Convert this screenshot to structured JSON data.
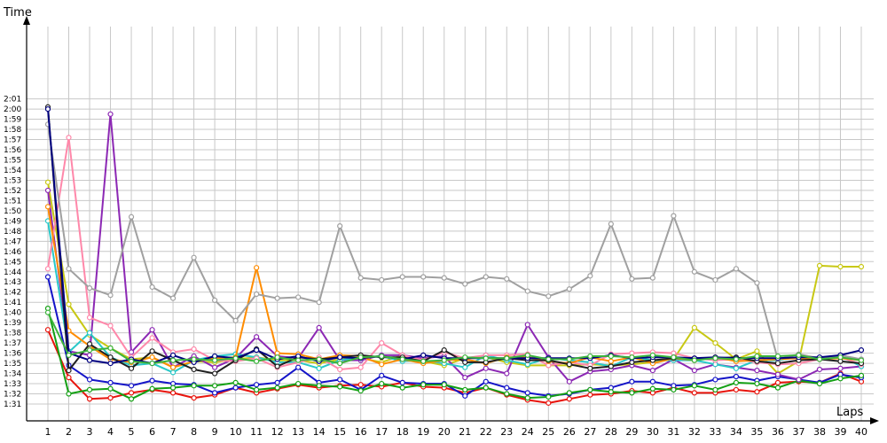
{
  "chart_data": {
    "type": "line",
    "title": "",
    "xlabel": "Laps",
    "ylabel": "Time",
    "x": [
      1,
      2,
      3,
      4,
      5,
      6,
      7,
      8,
      9,
      10,
      11,
      12,
      13,
      14,
      15,
      16,
      17,
      18,
      19,
      20,
      21,
      22,
      23,
      24,
      25,
      26,
      27,
      28,
      29,
      30,
      31,
      32,
      33,
      34,
      35,
      36,
      37,
      38,
      39,
      40
    ],
    "x_tick_labels": [
      "1",
      "2",
      "3",
      "4",
      "5",
      "6",
      "7",
      "8",
      "9",
      "10",
      "11",
      "12",
      "13",
      "14",
      "15",
      "16",
      "17",
      "18",
      "19",
      "20",
      "21",
      "22",
      "23",
      "24",
      "25",
      "26",
      "27",
      "28",
      "29",
      "30",
      "31",
      "32",
      "33",
      "34",
      "35",
      "36",
      "37",
      "38",
      "39",
      "40"
    ],
    "y_tick_labels": [
      "1:31",
      "1:32",
      "1:33",
      "1:34",
      "1:35",
      "1:36",
      "1:37",
      "1:38",
      "1:39",
      "1:40",
      "1:41",
      "1:42",
      "1:43",
      "1:44",
      "1:45",
      "1:46",
      "1:47",
      "1:48",
      "1:49",
      "1:50",
      "1:51",
      "1:52",
      "1:53",
      "1:54",
      "1:55",
      "1:56",
      "1:57",
      "1:58",
      "1:59",
      "2:00",
      "2:01"
    ],
    "y_unit": "seconds",
    "ylim": [
      90,
      122
    ],
    "grid": true,
    "series": [
      {
        "color": "#e8140c",
        "values": [
          98.3,
          93.6,
          91.5,
          91.6,
          92.1,
          92.4,
          92.1,
          91.6,
          91.9,
          92.6,
          92.1,
          92.5,
          92.9,
          92.6,
          92.8,
          92.9,
          92.7,
          93.1,
          92.7,
          92.6,
          92.1,
          92.6,
          91.9,
          91.4,
          91.1,
          91.5,
          91.9,
          92.0,
          92.3,
          92.1,
          92.6,
          92.1,
          92.1,
          92.4,
          92.2,
          93.1,
          93.2,
          93.1,
          94.0,
          93.2
        ]
      },
      {
        "color": "#1414c8",
        "values": [
          103.5,
          94.8,
          93.4,
          93.1,
          92.8,
          93.3,
          93.0,
          92.9,
          92.1,
          92.6,
          92.9,
          93.1,
          94.6,
          93.1,
          93.4,
          92.4,
          93.8,
          93.1,
          93.0,
          93.0,
          91.8,
          93.2,
          92.6,
          92.1,
          91.8,
          92.0,
          92.4,
          92.6,
          93.2,
          93.2,
          92.8,
          92.9,
          93.4,
          93.7,
          93.3,
          93.7,
          93.4,
          93.1,
          93.9,
          93.6
        ]
      },
      {
        "color": "#14a014",
        "values": [
          100.4,
          92.0,
          92.4,
          92.5,
          91.5,
          92.5,
          92.6,
          92.8,
          92.8,
          93.1,
          92.4,
          92.6,
          93.0,
          92.8,
          92.7,
          92.3,
          93.0,
          92.6,
          92.9,
          92.9,
          92.4,
          92.6,
          92.0,
          91.6,
          91.7,
          92.1,
          92.4,
          92.2,
          92.1,
          92.5,
          92.4,
          92.8,
          92.4,
          93.1,
          93.0,
          92.6,
          93.3,
          93.0,
          93.5,
          93.8
        ]
      },
      {
        "color": "#c8c814",
        "values": [
          112.8,
          100.8,
          97.8,
          96.5,
          95.4,
          95.6,
          94.6,
          95.2,
          95.1,
          95.4,
          95.6,
          95.3,
          95.3,
          95.0,
          95.4,
          95.5,
          95.1,
          95.8,
          95.2,
          94.8,
          95.5,
          95.6,
          95.1,
          94.8,
          94.8,
          94.8,
          94.9,
          94.8,
          94.9,
          95.1,
          95.4,
          98.5,
          97.0,
          95.4,
          96.2,
          94.0,
          95.2,
          104.6,
          104.5,
          104.5
        ]
      },
      {
        "color": "#8c28b4",
        "values": [
          112.0,
          96.2,
          95.8,
          119.5,
          96.1,
          98.3,
          94.6,
          95.7,
          94.6,
          95.5,
          97.6,
          95.7,
          95.5,
          98.5,
          95.3,
          95.3,
          95.8,
          95.8,
          95.5,
          95.7,
          93.6,
          94.5,
          94.0,
          98.8,
          95.6,
          93.2,
          94.2,
          94.4,
          94.8,
          94.3,
          95.4,
          94.3,
          94.9,
          94.6,
          94.3,
          93.9,
          93.4,
          94.4,
          94.5,
          94.7
        ]
      },
      {
        "color": "#28c8c8",
        "values": [
          109.0,
          96.1,
          98.0,
          95.6,
          94.8,
          95.0,
          94.1,
          95.3,
          95.7,
          95.9,
          95.6,
          95.1,
          95.1,
          94.5,
          95.3,
          95.6,
          95.7,
          95.2,
          95.3,
          95.0,
          94.6,
          95.8,
          95.3,
          94.9,
          95.5,
          95.3,
          95.1,
          94.7,
          95.6,
          95.3,
          95.3,
          95.3,
          94.9,
          94.5,
          95.3,
          95.3,
          95.6,
          95.5,
          95.7,
          94.7
        ]
      },
      {
        "color": "#ff88aa",
        "values": [
          104.3,
          117.2,
          99.5,
          98.7,
          95.6,
          97.5,
          96.1,
          96.4,
          95.3,
          95.2,
          95.5,
          94.6,
          95.1,
          95.6,
          94.4,
          94.6,
          97.0,
          95.8,
          95.3,
          96.1,
          95.5,
          95.8,
          95.8,
          95.9,
          94.8,
          95.1,
          94.8,
          95.9,
          96.0,
          96.1,
          96.0,
          95.5,
          95.3,
          95.4,
          95.1,
          94.9,
          95.0,
          95.4,
          95.6,
          94.9
        ]
      },
      {
        "color": "#ff8c00",
        "values": [
          110.4,
          98.2,
          96.7,
          95.4,
          95.1,
          95.6,
          94.6,
          95.2,
          95.5,
          95.6,
          104.4,
          96.0,
          95.9,
          95.4,
          95.8,
          95.7,
          94.9,
          95.4,
          95.0,
          95.3,
          95.4,
          95.0,
          95.6,
          95.6,
          95.2,
          95.0,
          95.6,
          95.2,
          95.6,
          95.0,
          95.5,
          95.3,
          95.6,
          95.2,
          95.3,
          95.4,
          95.5,
          95.4,
          95.5,
          95.3
        ]
      },
      {
        "color": "#202020",
        "values": [
          120.2,
          94.3,
          96.9,
          95.6,
          94.5,
          96.2,
          95.3,
          94.4,
          94.0,
          95.3,
          96.4,
          94.7,
          95.6,
          95.4,
          95.6,
          95.8,
          95.6,
          95.6,
          95.2,
          96.3,
          95.1,
          95.1,
          95.5,
          95.3,
          95.3,
          94.9,
          94.5,
          94.7,
          95.1,
          95.3,
          95.5,
          95.5,
          95.5,
          95.6,
          95.2,
          95.0,
          95.3,
          95.4,
          95.2,
          95.0
        ]
      },
      {
        "color": "#a0a0a0",
        "values": [
          118.5,
          104.3,
          102.4,
          101.7,
          109.4,
          102.5,
          101.4,
          105.4,
          101.2,
          99.2,
          101.8,
          101.4,
          101.5,
          101.0,
          108.5,
          103.4,
          103.2,
          103.5,
          103.5,
          103.4,
          102.8,
          103.5,
          103.3,
          102.1,
          101.6,
          102.3,
          103.6,
          108.7,
          103.3,
          103.4,
          109.5,
          104.0,
          103.2,
          104.3,
          102.9,
          95.4,
          95.9,
          95.5,
          95.8,
          95.4
        ]
      },
      {
        "color": "#000080",
        "values": [
          120.0,
          96.0,
          95.3,
          95.0,
          95.4,
          95.0,
          95.8,
          95.1,
          95.7,
          95.5,
          96.3,
          95.4,
          95.7,
          95.2,
          95.6,
          95.5,
          95.7,
          95.4,
          95.8,
          95.5,
          95.5,
          95.5,
          95.5,
          95.5,
          95.5,
          95.5,
          95.5,
          95.8,
          95.5,
          95.6,
          95.6,
          95.5,
          95.6,
          95.5,
          95.5,
          95.5,
          95.6,
          95.6,
          95.8,
          96.3
        ]
      },
      {
        "color": "#3cb43c",
        "values": [
          100.0,
          95.8,
          96.3,
          96.5,
          95.2,
          95.0,
          95.3,
          95.4,
          95.3,
          95.5,
          95.2,
          95.6,
          95.3,
          95.4,
          95.0,
          95.6,
          95.7,
          95.4,
          95.2,
          95.3,
          95.6,
          95.5,
          95.5,
          95.8,
          95.4,
          95.4,
          95.7,
          95.7,
          95.6,
          95.8,
          95.6,
          95.3,
          95.5,
          95.4,
          95.7,
          95.7,
          95.8,
          95.4,
          95.6,
          95.3
        ]
      }
    ]
  }
}
